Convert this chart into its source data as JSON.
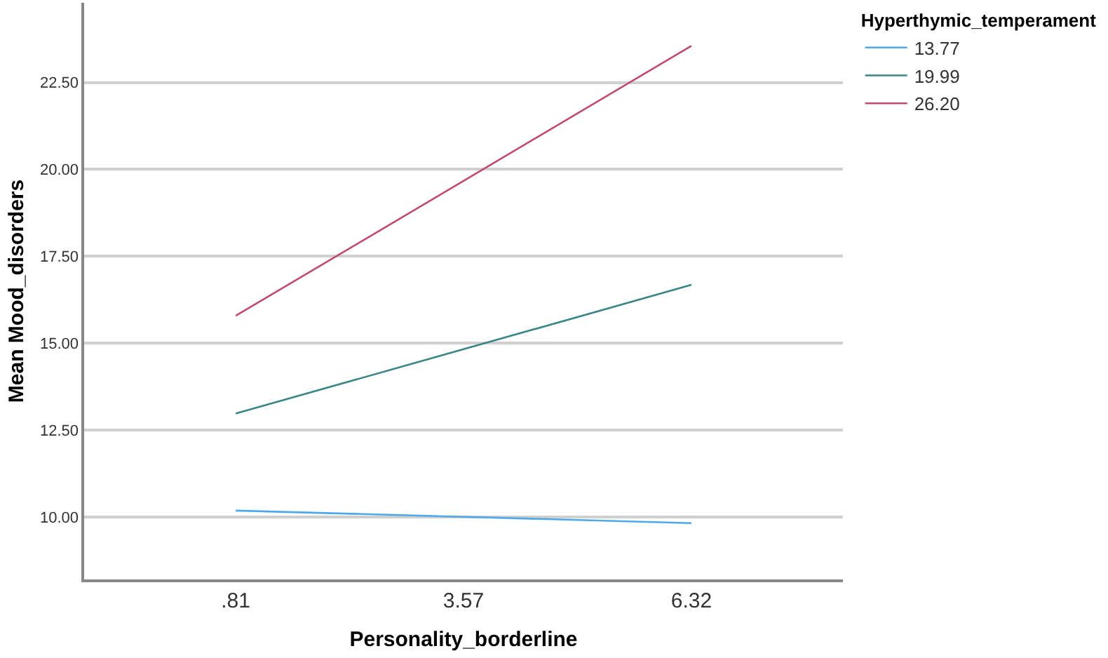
{
  "chart_data": {
    "type": "line",
    "xlabel": "Personality_borderline",
    "ylabel": "Mean Mood_disorders",
    "legend_title": "Hyperthymic_temperament",
    "categories": [
      ".81",
      "3.57",
      "6.32"
    ],
    "series": [
      {
        "name": "13.77",
        "color": "#4ea8ee",
        "values": [
          10.19,
          10.01,
          9.83
        ]
      },
      {
        "name": "19.99",
        "color": "#3a8585",
        "values": [
          12.98,
          14.83,
          16.68
        ]
      },
      {
        "name": "26.20",
        "color": "#c04a74",
        "values": [
          15.79,
          19.67,
          23.55
        ]
      }
    ],
    "ylim": [
      8.21,
      24.79
    ],
    "yticks": [
      {
        "value": 10,
        "label": "10.00"
      },
      {
        "value": 12.5,
        "label": "12.50"
      },
      {
        "value": 15,
        "label": "15.00"
      },
      {
        "value": 17.5,
        "label": "17.50"
      },
      {
        "value": 20,
        "label": "20.00"
      },
      {
        "value": 22.5,
        "label": "22.50"
      }
    ],
    "grid": "y",
    "legend": "top right",
    "marker": "none",
    "line_style": "solid"
  }
}
